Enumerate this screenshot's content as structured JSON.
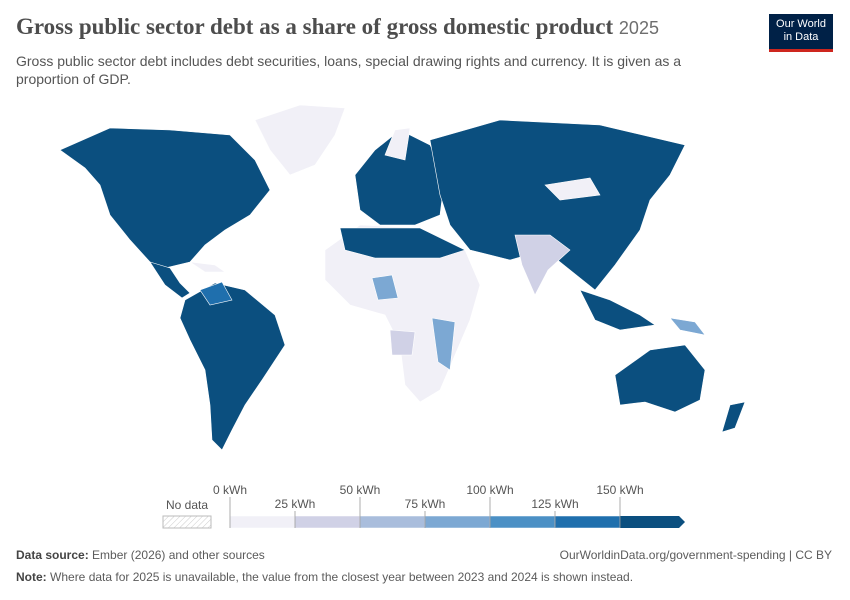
{
  "header": {
    "title": "Gross public sector debt as a share of gross domestic product",
    "year": "2025",
    "subtitle": "Gross public sector debt includes debt securities, loans, special drawing rights and currency. It is given as a proportion of GDP.",
    "logo_line1": "Our World",
    "logo_line2": "in Data"
  },
  "legend": {
    "no_data": "No data",
    "ticks": [
      {
        "value": 0,
        "label": "0 kWh"
      },
      {
        "value": 25,
        "label": "25 kWh"
      },
      {
        "value": 50,
        "label": "50 kWh"
      },
      {
        "value": 75,
        "label": "75 kWh"
      },
      {
        "value": 100,
        "label": "100 kWh"
      },
      {
        "value": 125,
        "label": "125 kWh"
      },
      {
        "value": 150,
        "label": "150 kWh"
      }
    ],
    "colors": [
      "#f1f0f7",
      "#d0d1e6",
      "#a9bddc",
      "#7ca8d3",
      "#4b90c5",
      "#1f6fad",
      "#0b4f7f"
    ]
  },
  "footer": {
    "source_label": "Data source:",
    "source": "Ember (2026) and other sources",
    "url": "OurWorldinData.org/government-spending | CC BY",
    "note_label": "Note:",
    "note": "Where data for 2025 is unavailable, the value from the closest year between 2023 and 2024 is shown instead."
  }
}
